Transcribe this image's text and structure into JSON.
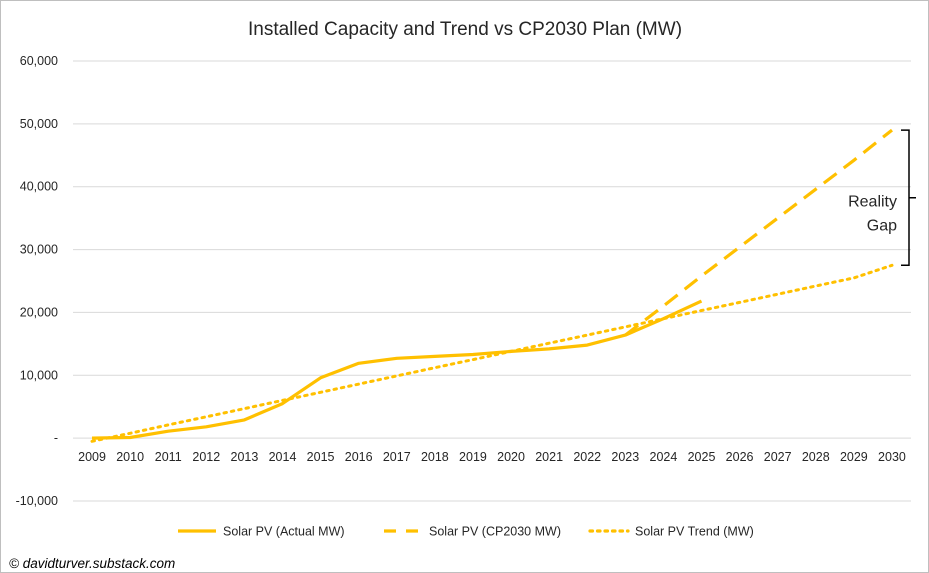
{
  "chart_data": {
    "type": "line",
    "title": "Installed Capacity and Trend vs CP2030 Plan (MW)",
    "x": [
      "2009",
      "2010",
      "2011",
      "2012",
      "2013",
      "2014",
      "2015",
      "2016",
      "2017",
      "2018",
      "2019",
      "2020",
      "2021",
      "2022",
      "2023",
      "2024",
      "2025",
      "2026",
      "2027",
      "2028",
      "2029",
      "2030"
    ],
    "ylim": [
      -10000,
      60000
    ],
    "yticks": [
      -10000,
      0,
      10000,
      20000,
      30000,
      40000,
      50000,
      60000
    ],
    "ytick_labels": [
      "-10,000",
      "-",
      "10,000",
      "20,000",
      "30,000",
      "40,000",
      "50,000",
      "60,000"
    ],
    "grid": true,
    "legend_position": "bottom",
    "colors": {
      "series": "#FFC000",
      "grid": "#d9d9d9",
      "text": "#262626",
      "bracket": "#000000"
    },
    "series": [
      {
        "name": "Solar PV (Actual MW)",
        "style": "solid",
        "values": [
          0,
          100,
          1100,
          1800,
          2900,
          5500,
          9600,
          11900,
          12700,
          13000,
          13300,
          13800,
          14200,
          14800,
          16400,
          19000,
          21800,
          null,
          null,
          null,
          null,
          null
        ]
      },
      {
        "name": "Solar PV (CP2030 MW)",
        "style": "dashed",
        "values": [
          null,
          null,
          null,
          null,
          null,
          null,
          null,
          null,
          null,
          null,
          null,
          null,
          null,
          null,
          16400,
          21000,
          25800,
          30400,
          35000,
          39600,
          44200,
          49000
        ]
      },
      {
        "name": "Solar PV Trend (MW)",
        "style": "dotted",
        "values": [
          -500,
          770,
          2100,
          3400,
          4700,
          6000,
          7300,
          8600,
          9900,
          11200,
          12500,
          13800,
          15100,
          16400,
          17700,
          19000,
          20300,
          21600,
          22900,
          24200,
          25500,
          27500
        ]
      }
    ],
    "annotations": [
      {
        "text_lines": [
          "Reality",
          "Gap"
        ],
        "bracket_from": 27500,
        "bracket_to": 49000
      }
    ]
  },
  "credit": "© davidturver.substack.com"
}
